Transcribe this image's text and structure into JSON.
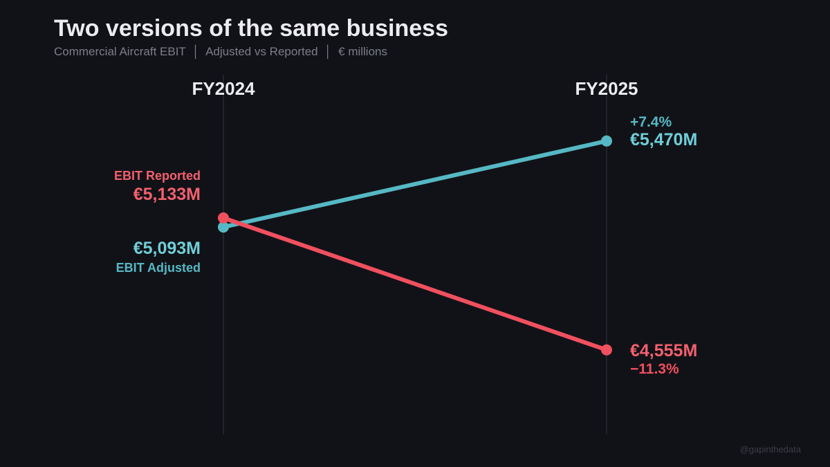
{
  "header": {
    "title": "Two versions of the same business",
    "subtitle": "Commercial Aircraft EBIT  │  Adjusted vs Reported  │  € millions"
  },
  "credit": "@gapinthedata",
  "chart_data": {
    "type": "line",
    "subtype": "slope",
    "categories": [
      "FY2024",
      "FY2025"
    ],
    "grid": false,
    "series": [
      {
        "name": "EBIT Reported",
        "values": [
          5133,
          4555
        ],
        "labels": [
          "€5,133M",
          "€4,555M"
        ],
        "change": "−11.3%",
        "color": "#f0505f",
        "label_color": "#f2606e"
      },
      {
        "name": "EBIT Adjusted",
        "values": [
          5093,
          5470
        ],
        "labels": [
          "€5,093M",
          "€5,470M"
        ],
        "change": "+7.4%",
        "color": "#56b8c4",
        "label_color": "#6fcfd8"
      }
    ]
  }
}
